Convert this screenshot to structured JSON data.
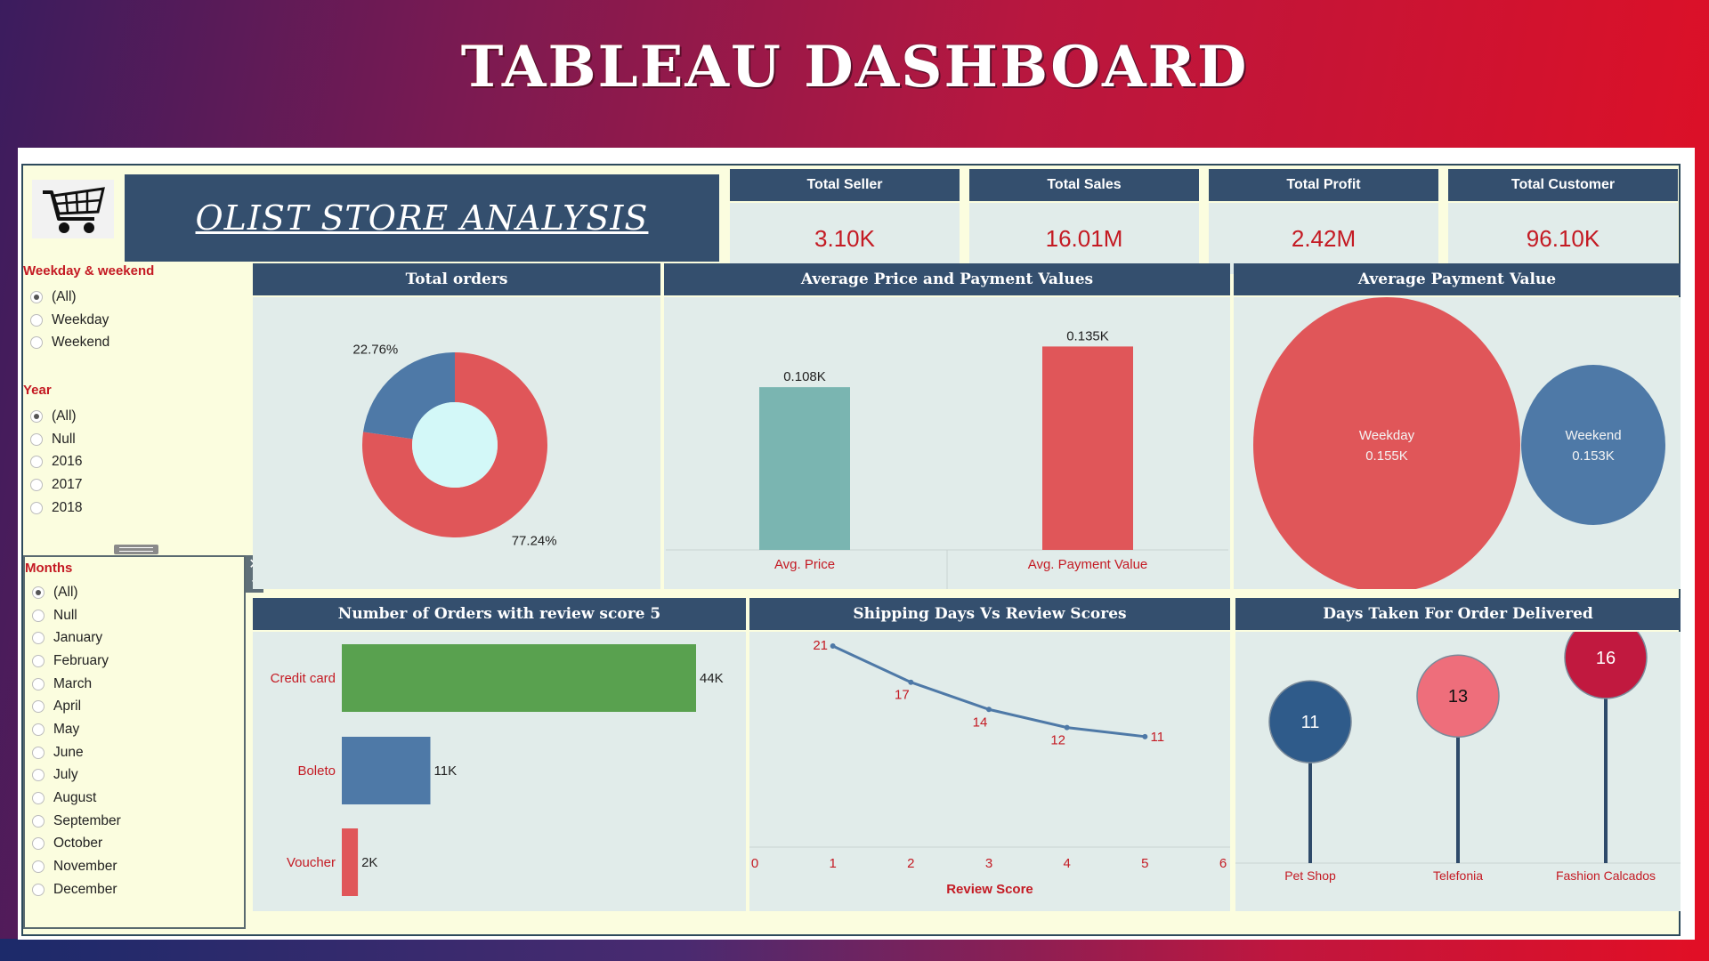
{
  "page_title": "TABLEAU DASHBOARD",
  "store": {
    "title": "OLIST STORE ANALYSIS",
    "logo_icon": "shopping-cart-icon"
  },
  "kpis": [
    {
      "label": "Total Seller",
      "value": "3.10K"
    },
    {
      "label": "Total Sales",
      "value": "16.01M"
    },
    {
      "label": "Total Profit",
      "value": "2.42M"
    },
    {
      "label": "Total Customer",
      "value": "96.10K"
    }
  ],
  "filters": {
    "weekday": {
      "title": "Weekday & weekend",
      "options": [
        "(All)",
        "Weekday",
        "Weekend"
      ],
      "selected": "(All)"
    },
    "year": {
      "title": "Year",
      "options": [
        "(All)",
        "Null",
        "2016",
        "2017",
        "2018"
      ],
      "selected": "(All)"
    },
    "months": {
      "title": "Months",
      "options": [
        "(All)",
        "Null",
        "January",
        "February",
        "March",
        "April",
        "May",
        "June",
        "July",
        "August",
        "September",
        "October",
        "November",
        "December"
      ],
      "selected": "(All)"
    }
  },
  "panels": {
    "total_orders": "Total orders",
    "avg_price_payment": "Average Price and Payment Values",
    "avg_payment_value": "Average Payment Value",
    "review_score_orders": "Number of Orders with review score 5",
    "shipping_vs_review": "Shipping Days Vs Review Scores",
    "days_delivered": "Days Taken For Order Delivered"
  },
  "colors": {
    "navy": "#344f6e",
    "red": "#e05659",
    "blue": "#4e79a7",
    "teal": "#7ab5b1",
    "green": "#59a14f",
    "pink": "#ee6e7b",
    "crimson": "#c1193f",
    "accent_text": "#c41a23"
  },
  "chart_data": [
    {
      "id": "total_orders",
      "type": "pie",
      "donut": true,
      "slices": [
        {
          "label": "77.24%",
          "value": 77.24,
          "color": "#e05659"
        },
        {
          "label": "22.76%",
          "value": 22.76,
          "color": "#4e79a7"
        }
      ]
    },
    {
      "id": "avg_price_payment",
      "type": "bar",
      "categories": [
        "Avg. Price",
        "Avg. Payment Value"
      ],
      "values": [
        0.108,
        0.135
      ],
      "labels": [
        "0.108K",
        "0.135K"
      ],
      "colors": [
        "#7ab5b1",
        "#e05659"
      ],
      "ylim": [
        0,
        0.15
      ]
    },
    {
      "id": "avg_payment_value",
      "type": "bubble",
      "items": [
        {
          "name": "Weekday",
          "value": 0.155,
          "label": "0.155K",
          "color": "#e05659"
        },
        {
          "name": "Weekend",
          "value": 0.153,
          "label": "0.153K",
          "color": "#4e79a7"
        }
      ]
    },
    {
      "id": "review_score_orders",
      "type": "bar",
      "orientation": "horizontal",
      "categories": [
        "Credit card",
        "Boleto",
        "Voucher"
      ],
      "values": [
        44,
        11,
        2
      ],
      "labels": [
        "44K",
        "11K",
        "2K"
      ],
      "colors": [
        "#59a14f",
        "#4e79a7",
        "#e05659"
      ],
      "xlim": [
        0,
        44
      ]
    },
    {
      "id": "shipping_vs_review",
      "type": "line",
      "x": [
        1,
        2,
        3,
        4,
        5
      ],
      "y": [
        21,
        17,
        14,
        12,
        11
      ],
      "xlim": [
        0,
        6
      ],
      "yrange_estimate": [
        10,
        21
      ],
      "xticks": [
        "0",
        "1",
        "2",
        "3",
        "4",
        "5",
        "6"
      ],
      "xlabel": "Review Score",
      "color": "#4e79a7"
    },
    {
      "id": "days_delivered",
      "type": "lollipop",
      "categories": [
        "Pet Shop",
        "Telefonia",
        "Fashion Calcados"
      ],
      "values": [
        11,
        13,
        16
      ],
      "colors": [
        "#2f5b8a",
        "#ee6e7b",
        "#c1193f"
      ],
      "ylim": [
        0,
        18
      ]
    }
  ]
}
